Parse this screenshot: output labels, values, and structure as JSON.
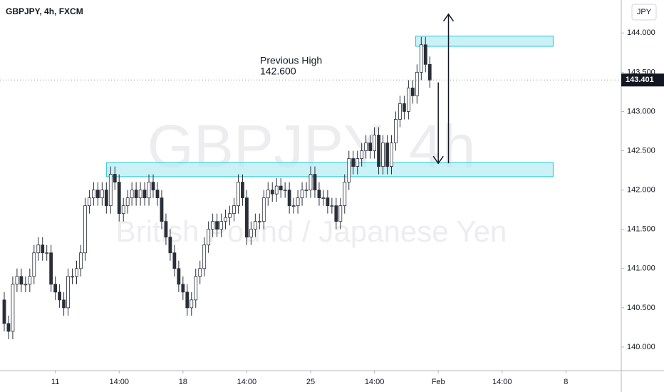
{
  "chart_data": {
    "type": "candlestick",
    "title": "GBPJPY, 4h, FXCM",
    "currency_button": "JPY",
    "watermark": [
      "GBPJPY, 4h",
      "British Pound / Japanese Yen"
    ],
    "open": [
      140.6,
      140.3,
      140.2,
      140.8,
      140.9,
      140.8,
      140.8,
      140.9,
      141.2,
      141.3,
      141.2,
      141.2,
      140.8,
      140.7,
      140.6,
      140.5,
      140.9,
      140.9,
      141.0,
      141.2,
      141.8,
      141.9,
      142.0,
      141.9,
      142.0,
      141.8,
      142.2,
      142.1,
      141.7,
      141.8,
      141.9,
      142.0,
      141.9,
      142.0,
      141.9,
      142.1,
      142.0,
      141.9,
      141.6,
      141.4,
      141.2,
      141.0,
      140.8,
      140.7,
      140.5,
      140.6,
      140.9,
      141.0,
      141.3,
      141.5,
      141.6,
      141.5,
      141.6,
      141.65,
      141.7,
      141.8,
      142.1,
      141.9,
      141.4,
      141.5,
      141.6,
      141.6,
      141.9,
      142.0,
      141.95,
      142.05,
      142.0,
      142.0,
      141.8,
      141.8,
      141.9,
      142.0,
      142.0,
      142.2,
      142.0,
      141.9,
      141.9,
      141.8,
      141.8,
      141.6,
      141.8,
      142.1,
      142.4,
      142.3,
      142.4,
      142.5,
      142.6,
      142.5,
      142.7,
      142.3,
      142.6,
      142.3,
      142.6,
      142.9,
      143.1,
      143.0,
      143.3,
      143.2,
      143.5,
      143.85,
      143.6
    ],
    "high": [
      140.7,
      140.4,
      140.9,
      141.0,
      141.0,
      140.9,
      141.0,
      141.3,
      141.4,
      141.4,
      141.3,
      141.3,
      140.9,
      140.8,
      140.7,
      141.0,
      141.0,
      141.1,
      141.3,
      141.9,
      142.0,
      142.1,
      142.1,
      142.1,
      142.1,
      142.3,
      142.3,
      142.2,
      141.9,
      142.0,
      142.1,
      142.1,
      142.1,
      142.1,
      142.2,
      142.2,
      142.1,
      142.0,
      141.7,
      141.5,
      141.3,
      141.1,
      140.9,
      140.8,
      140.7,
      141.0,
      141.1,
      141.4,
      141.6,
      141.7,
      141.7,
      141.7,
      141.75,
      141.8,
      141.9,
      142.2,
      142.2,
      142.0,
      141.6,
      141.7,
      141.7,
      142.0,
      142.1,
      142.1,
      142.15,
      142.15,
      142.1,
      142.1,
      141.9,
      142.0,
      142.1,
      142.1,
      142.3,
      142.3,
      142.1,
      142.0,
      142.0,
      141.9,
      141.9,
      141.9,
      142.2,
      142.5,
      142.5,
      142.5,
      142.6,
      142.7,
      142.7,
      142.8,
      142.8,
      142.7,
      142.7,
      142.7,
      143.0,
      143.2,
      143.2,
      143.4,
      143.4,
      143.6,
      143.95,
      143.95,
      143.7
    ],
    "low": [
      140.2,
      140.1,
      140.1,
      140.7,
      140.7,
      140.7,
      140.7,
      140.8,
      141.1,
      141.1,
      141.1,
      140.7,
      140.6,
      140.5,
      140.4,
      140.4,
      140.8,
      140.8,
      140.9,
      141.1,
      141.7,
      141.8,
      141.8,
      141.8,
      141.7,
      141.7,
      142.0,
      141.6,
      141.6,
      141.7,
      141.8,
      141.8,
      141.8,
      141.8,
      141.8,
      141.9,
      141.8,
      141.5,
      141.3,
      141.1,
      140.9,
      140.7,
      140.6,
      140.4,
      140.4,
      140.5,
      140.8,
      140.9,
      141.2,
      141.4,
      141.4,
      141.4,
      141.5,
      141.55,
      141.6,
      141.7,
      141.8,
      141.3,
      141.3,
      141.4,
      141.5,
      141.5,
      141.8,
      141.85,
      141.85,
      141.9,
      141.9,
      141.7,
      141.7,
      141.7,
      141.8,
      141.9,
      141.9,
      141.9,
      141.8,
      141.8,
      141.7,
      141.7,
      141.5,
      141.5,
      141.7,
      142.0,
      142.2,
      142.2,
      142.3,
      142.4,
      142.4,
      142.4,
      142.2,
      142.2,
      142.2,
      142.2,
      142.5,
      142.8,
      142.9,
      142.9,
      143.1,
      143.1,
      143.4,
      143.5,
      143.3
    ],
    "close": [
      140.3,
      140.2,
      140.8,
      140.9,
      140.8,
      140.8,
      140.9,
      141.2,
      141.3,
      141.2,
      141.2,
      140.8,
      140.7,
      140.6,
      140.5,
      140.9,
      140.9,
      141.0,
      141.2,
      141.8,
      141.9,
      142.0,
      141.9,
      142.0,
      141.8,
      142.2,
      142.1,
      141.7,
      141.8,
      141.9,
      142.0,
      141.9,
      142.0,
      141.9,
      142.1,
      142.0,
      141.9,
      141.6,
      141.4,
      141.2,
      141.0,
      140.8,
      140.7,
      140.5,
      140.6,
      140.9,
      141.0,
      141.3,
      141.5,
      141.6,
      141.5,
      141.6,
      141.65,
      141.7,
      141.8,
      142.1,
      141.9,
      141.4,
      141.5,
      141.6,
      141.6,
      141.9,
      142.0,
      141.95,
      142.05,
      142.0,
      142.0,
      141.8,
      141.8,
      141.9,
      142.0,
      142.0,
      142.2,
      142.0,
      141.9,
      141.9,
      141.8,
      141.8,
      141.6,
      141.8,
      142.1,
      142.4,
      142.3,
      142.4,
      142.5,
      142.6,
      142.5,
      142.7,
      142.3,
      142.6,
      142.3,
      142.6,
      142.9,
      143.1,
      143.0,
      143.3,
      143.2,
      143.5,
      143.85,
      143.6,
      143.4
    ],
    "up_color": "#ffffff",
    "down_color": "#2a2e39",
    "wick_color": "#2a2e39",
    "xlim": [
      -1,
      145
    ],
    "xticks": [
      {
        "value": 12,
        "label": "11"
      },
      {
        "value": 27,
        "label": "14:00"
      },
      {
        "value": 42,
        "label": "18"
      },
      {
        "value": 57,
        "label": "14:00"
      },
      {
        "value": 72,
        "label": "25"
      },
      {
        "value": 87,
        "label": "14:00"
      },
      {
        "value": 102,
        "label": "Feb"
      },
      {
        "value": 117,
        "label": "14:00"
      },
      {
        "value": 132,
        "label": "8"
      }
    ],
    "ylim": [
      139.7,
      144.42
    ],
    "yticks": [
      {
        "value": 140,
        "label": "140.000"
      },
      {
        "value": 140.5,
        "label": "140.500"
      },
      {
        "value": 141,
        "label": "141.000"
      },
      {
        "value": 141.5,
        "label": "141.500"
      },
      {
        "value": 142,
        "label": "142.000"
      },
      {
        "value": 142.5,
        "label": "142.500"
      },
      {
        "value": 143,
        "label": "143.000"
      },
      {
        "value": 143.5,
        "label": "143.500"
      },
      {
        "value": 144,
        "label": "144.000"
      }
    ],
    "grid": false,
    "last_price": {
      "value": 143.401,
      "label": "143.401"
    },
    "zones": [
      {
        "x": [
          24,
          129
        ],
        "y": [
          142.17,
          142.35
        ],
        "color": "#b2ebf2"
      },
      {
        "x": [
          96.7,
          129
        ],
        "y": [
          143.83,
          143.96
        ],
        "color": "#b2ebf2"
      }
    ],
    "arrows": [
      {
        "x": 102,
        "from": 143.37,
        "to": 142.34
      },
      {
        "x": 104.4,
        "from": 142.34,
        "to": 144.24
      }
    ],
    "annotation": [
      "Previous High",
      "142.600"
    ]
  }
}
